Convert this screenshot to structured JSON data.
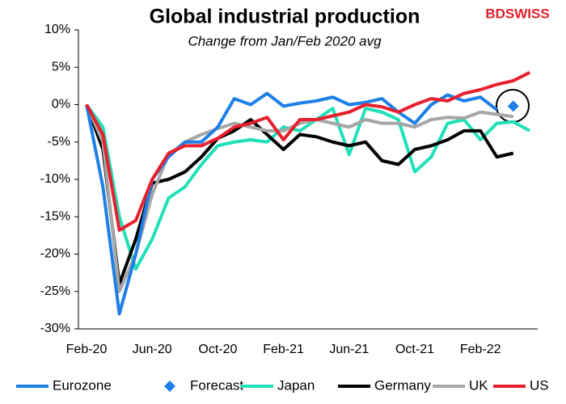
{
  "chart_data": {
    "type": "line",
    "title": "Global industrial production",
    "subtitle": "Change from Jan/Feb 2020 avg",
    "logo": "BDSWISS",
    "categories": [
      "Feb-20",
      null,
      null,
      null,
      "Jun-20",
      null,
      null,
      null,
      "Oct-20",
      null,
      null,
      null,
      "Feb-21",
      null,
      null,
      null,
      "Jun-21",
      null,
      null,
      null,
      "Oct-21",
      null,
      null,
      null,
      "Feb-22",
      null,
      null,
      null
    ],
    "series": [
      {
        "name": "Eurozone",
        "color": "#1e7fe6",
        "values": [
          0,
          -11,
          -28,
          -20,
          -10,
          -7,
          -5,
          -5,
          -3,
          0.8,
          0,
          1.5,
          -0.2,
          0.2,
          0.5,
          1,
          0,
          0.3,
          0.8,
          -1,
          -2.5,
          0,
          1.3,
          0.5,
          1,
          -0.7,
          null,
          null
        ]
      },
      {
        "name": "Forecast",
        "color": "#1e7fe6",
        "marker": "diamond",
        "values": [
          null,
          null,
          null,
          null,
          null,
          null,
          null,
          null,
          null,
          null,
          null,
          null,
          null,
          null,
          null,
          null,
          null,
          null,
          null,
          null,
          null,
          null,
          null,
          null,
          null,
          null,
          -0.2,
          null
        ]
      },
      {
        "name": "Japan",
        "color": "#1fe0b8",
        "values": [
          0,
          -3,
          -15,
          -22,
          -18,
          -12.5,
          -11,
          -8,
          -5.5,
          -5,
          -4.7,
          -5,
          -3,
          -3.5,
          -2,
          -0.5,
          -6.7,
          -0.5,
          -1,
          -2,
          -9,
          -7,
          -2.5,
          -2,
          -4.7,
          -2.5,
          -2.3,
          -3.5
        ]
      },
      {
        "name": "Germany",
        "color": "#000000",
        "values": [
          0,
          -6,
          -24,
          -18,
          -10.5,
          -10,
          -9,
          -7,
          -4.5,
          -3.5,
          -2,
          -4,
          -6,
          -4,
          -4.3,
          -5,
          -5.5,
          -5,
          -7.5,
          -8,
          -6,
          -5.5,
          -4.7,
          -3.5,
          -3.5,
          -7,
          -6.5,
          null
        ]
      },
      {
        "name": "UK",
        "color": "#a6a6a6",
        "values": [
          0,
          -5,
          -25,
          -20,
          -12,
          -6.7,
          -5,
          -4,
          -3.2,
          -2.5,
          -3,
          -3.5,
          -3.5,
          -2.5,
          -2,
          -2.5,
          -3,
          -2,
          -2.5,
          -2.5,
          -3,
          -2,
          -1.7,
          -1.8,
          -1,
          -1.3,
          -1.6,
          null
        ]
      },
      {
        "name": "US",
        "color": "#e8202e",
        "values": [
          0,
          -4,
          -16.8,
          -15.5,
          -10,
          -6.5,
          -5.5,
          -5.5,
          -4.5,
          -3,
          -2.5,
          -1.7,
          -4.7,
          -2,
          -2,
          -1.5,
          -1,
          0,
          -0.3,
          -1,
          0,
          0.8,
          0.5,
          1.5,
          2,
          2.7,
          3.2,
          4.3
        ]
      }
    ],
    "ylim": [
      -30,
      10
    ],
    "yticks": [
      {
        "value": -30,
        "label": "-30%"
      },
      {
        "value": -25,
        "label": "-25%"
      },
      {
        "value": -20,
        "label": "-20%"
      },
      {
        "value": -15,
        "label": "-15%"
      },
      {
        "value": -10,
        "label": "-10%"
      },
      {
        "value": -5,
        "label": "-5%"
      },
      {
        "value": 0,
        "label": "0%"
      },
      {
        "value": 5,
        "label": "5%"
      },
      {
        "value": 10,
        "label": "10%"
      }
    ]
  }
}
